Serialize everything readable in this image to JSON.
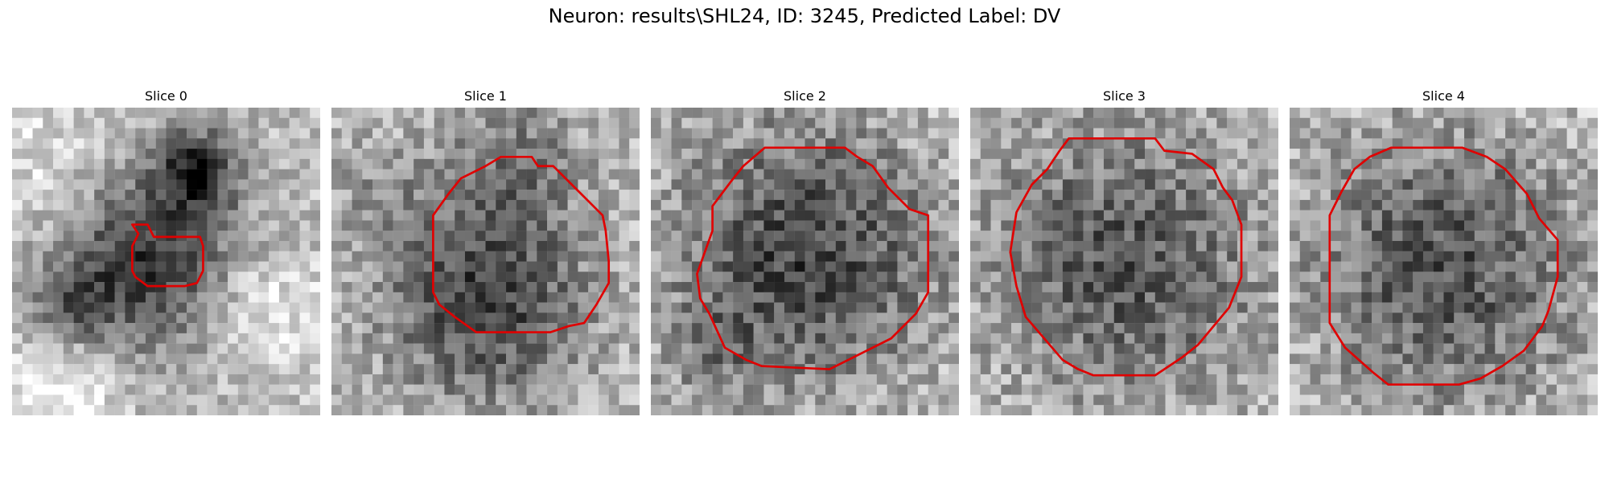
{
  "figure": {
    "title": "Neuron: results\\SHL24, ID: 3245, Predicted Label: DV"
  },
  "contour_color": "#e00000",
  "slices": [
    {
      "title": "Slice 0",
      "seed": 11,
      "blobs": [
        [
          0.45,
          0.5,
          0.22,
          0.55
        ],
        [
          0.6,
          0.2,
          0.09,
          0.55
        ],
        [
          0.18,
          0.65,
          0.1,
          0.35
        ],
        [
          0.15,
          0.9,
          0.16,
          -0.25
        ],
        [
          0.8,
          0.65,
          0.14,
          -0.25
        ],
        [
          0.12,
          0.2,
          0.18,
          -0.15
        ]
      ],
      "contour": [
        [
          0.39,
          0.38
        ],
        [
          0.44,
          0.38
        ],
        [
          0.46,
          0.42
        ],
        [
          0.49,
          0.42
        ],
        [
          0.61,
          0.42
        ],
        [
          0.62,
          0.45
        ],
        [
          0.62,
          0.53
        ],
        [
          0.6,
          0.57
        ],
        [
          0.56,
          0.58
        ],
        [
          0.44,
          0.58
        ],
        [
          0.4,
          0.55
        ],
        [
          0.39,
          0.53
        ],
        [
          0.39,
          0.45
        ],
        [
          0.41,
          0.41
        ]
      ],
      "base": 0.75,
      "noise": 0.16
    },
    {
      "title": "Slice 1",
      "seed": 23,
      "blobs": [
        [
          0.5,
          0.62,
          0.24,
          0.52
        ],
        [
          0.6,
          0.15,
          0.16,
          0.25
        ],
        [
          0.15,
          0.25,
          0.12,
          0.15
        ]
      ],
      "contour": [
        [
          0.55,
          0.16
        ],
        [
          0.65,
          0.16
        ],
        [
          0.67,
          0.19
        ],
        [
          0.72,
          0.19
        ],
        [
          0.81,
          0.28
        ],
        [
          0.88,
          0.35
        ],
        [
          0.89,
          0.4
        ],
        [
          0.9,
          0.5
        ],
        [
          0.9,
          0.57
        ],
        [
          0.86,
          0.64
        ],
        [
          0.82,
          0.7
        ],
        [
          0.77,
          0.71
        ],
        [
          0.71,
          0.73
        ],
        [
          0.47,
          0.73
        ],
        [
          0.4,
          0.68
        ],
        [
          0.35,
          0.64
        ],
        [
          0.33,
          0.6
        ],
        [
          0.33,
          0.35
        ],
        [
          0.38,
          0.28
        ],
        [
          0.42,
          0.23
        ],
        [
          0.46,
          0.21
        ],
        [
          0.5,
          0.19
        ]
      ],
      "base": 0.76,
      "noise": 0.18
    },
    {
      "title": "Slice 2",
      "seed": 37,
      "blobs": [
        [
          0.5,
          0.48,
          0.32,
          0.52
        ],
        [
          0.2,
          0.78,
          0.1,
          0.15
        ]
      ],
      "contour": [
        [
          0.37,
          0.13
        ],
        [
          0.63,
          0.13
        ],
        [
          0.67,
          0.16
        ],
        [
          0.72,
          0.19
        ],
        [
          0.77,
          0.26
        ],
        [
          0.84,
          0.33
        ],
        [
          0.9,
          0.35
        ],
        [
          0.9,
          0.6
        ],
        [
          0.86,
          0.67
        ],
        [
          0.78,
          0.75
        ],
        [
          0.68,
          0.8
        ],
        [
          0.62,
          0.83
        ],
        [
          0.58,
          0.85
        ],
        [
          0.36,
          0.84
        ],
        [
          0.31,
          0.82
        ],
        [
          0.24,
          0.78
        ],
        [
          0.19,
          0.67
        ],
        [
          0.16,
          0.62
        ],
        [
          0.15,
          0.54
        ],
        [
          0.2,
          0.4
        ],
        [
          0.2,
          0.32
        ],
        [
          0.26,
          0.24
        ],
        [
          0.3,
          0.19
        ]
      ],
      "base": 0.78,
      "noise": 0.2
    },
    {
      "title": "Slice 3",
      "seed": 53,
      "blobs": [
        [
          0.5,
          0.5,
          0.34,
          0.46
        ]
      ],
      "contour": [
        [
          0.32,
          0.1
        ],
        [
          0.6,
          0.1
        ],
        [
          0.63,
          0.14
        ],
        [
          0.72,
          0.15
        ],
        [
          0.79,
          0.2
        ],
        [
          0.82,
          0.26
        ],
        [
          0.85,
          0.3
        ],
        [
          0.88,
          0.38
        ],
        [
          0.88,
          0.55
        ],
        [
          0.84,
          0.65
        ],
        [
          0.74,
          0.77
        ],
        [
          0.69,
          0.81
        ],
        [
          0.6,
          0.87
        ],
        [
          0.4,
          0.87
        ],
        [
          0.35,
          0.85
        ],
        [
          0.3,
          0.82
        ],
        [
          0.24,
          0.75
        ],
        [
          0.18,
          0.68
        ],
        [
          0.15,
          0.58
        ],
        [
          0.13,
          0.47
        ],
        [
          0.15,
          0.34
        ],
        [
          0.2,
          0.25
        ],
        [
          0.25,
          0.2
        ],
        [
          0.29,
          0.14
        ]
      ],
      "base": 0.79,
      "noise": 0.2
    },
    {
      "title": "Slice 4",
      "seed": 71,
      "blobs": [
        [
          0.5,
          0.52,
          0.34,
          0.48
        ]
      ],
      "contour": [
        [
          0.33,
          0.13
        ],
        [
          0.56,
          0.13
        ],
        [
          0.64,
          0.16
        ],
        [
          0.7,
          0.2
        ],
        [
          0.77,
          0.28
        ],
        [
          0.81,
          0.36
        ],
        [
          0.87,
          0.43
        ],
        [
          0.87,
          0.55
        ],
        [
          0.84,
          0.66
        ],
        [
          0.82,
          0.71
        ],
        [
          0.76,
          0.79
        ],
        [
          0.69,
          0.84
        ],
        [
          0.62,
          0.88
        ],
        [
          0.55,
          0.9
        ],
        [
          0.32,
          0.9
        ],
        [
          0.27,
          0.86
        ],
        [
          0.18,
          0.78
        ],
        [
          0.13,
          0.7
        ],
        [
          0.13,
          0.35
        ],
        [
          0.17,
          0.27
        ],
        [
          0.21,
          0.2
        ],
        [
          0.26,
          0.16
        ]
      ],
      "base": 0.8,
      "noise": 0.2
    }
  ]
}
